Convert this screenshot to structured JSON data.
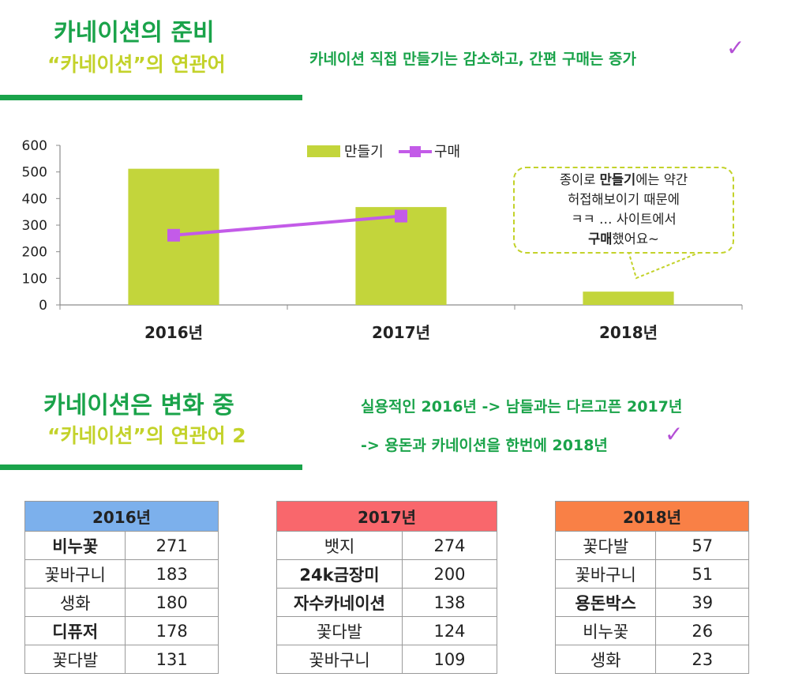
{
  "section1": {
    "title": "카네이션의 준비",
    "subtitle": "“카네이션”의 연관어",
    "headline": "카네이션 직접 만들기는 감소하고, 간편 구매는 증가",
    "check": "✓"
  },
  "chart_data": {
    "type": "bar",
    "categories": [
      "2016년",
      "2017년",
      "2018년"
    ],
    "series": [
      {
        "name": "만들기",
        "type": "bar",
        "values": [
          512,
          368,
          50
        ],
        "color": "#c3d53b"
      },
      {
        "name": "구매",
        "type": "line",
        "values": [
          262,
          334,
          null
        ],
        "color": "#c35be8"
      }
    ],
    "ylim": [
      0,
      600
    ],
    "yticks": [
      0,
      100,
      200,
      300,
      400,
      500,
      600
    ],
    "legend": "top-center",
    "grid": false,
    "annotation": {
      "line1_pre": "종이로 ",
      "line1_bold": "만들기",
      "line1_post": "에는 약간",
      "line2": "허접해보이기 때문에",
      "line3": "ㅋㅋ … 사이트에서",
      "line4_bold": "구매",
      "line4_post": "했어요~"
    }
  },
  "section2": {
    "title": "카네이션은 변화 중",
    "subtitle": "“카네이션”의 연관어 2",
    "headline_line1": "실용적인 2016년 -> 남들과는 다르고픈 2017년",
    "headline_line2": "-> 용돈과 카네이션을 한번에 2018년",
    "check": "✓"
  },
  "tables": [
    {
      "year": "2016년",
      "header_color": "#7cb0ec",
      "rows": [
        {
          "word": "비누꽃",
          "count": "271",
          "highlight": true
        },
        {
          "word": "꽃바구니",
          "count": "183",
          "highlight": false
        },
        {
          "word": "생화",
          "count": "180",
          "highlight": false
        },
        {
          "word": "디퓨저",
          "count": "178",
          "highlight": true
        },
        {
          "word": "꽃다발",
          "count": "131",
          "highlight": false
        }
      ]
    },
    {
      "year": "2017년",
      "header_color": "#f9676c",
      "rows": [
        {
          "word": "뱃지",
          "count": "274",
          "highlight": false
        },
        {
          "word": "24k금장미",
          "count": "200",
          "highlight": true
        },
        {
          "word": "자수카네이션",
          "count": "138",
          "highlight": true
        },
        {
          "word": "꽃다발",
          "count": "124",
          "highlight": false
        },
        {
          "word": "꽃바구니",
          "count": "109",
          "highlight": false
        }
      ]
    },
    {
      "year": "2018년",
      "header_color": "#f98046",
      "rows": [
        {
          "word": "꽃다발",
          "count": "57",
          "highlight": false
        },
        {
          "word": "꽃바구니",
          "count": "51",
          "highlight": false
        },
        {
          "word": "용돈박스",
          "count": "39",
          "highlight": true
        },
        {
          "word": "비누꽃",
          "count": "26",
          "highlight": false
        },
        {
          "word": "생화",
          "count": "23",
          "highlight": false
        }
      ]
    }
  ]
}
